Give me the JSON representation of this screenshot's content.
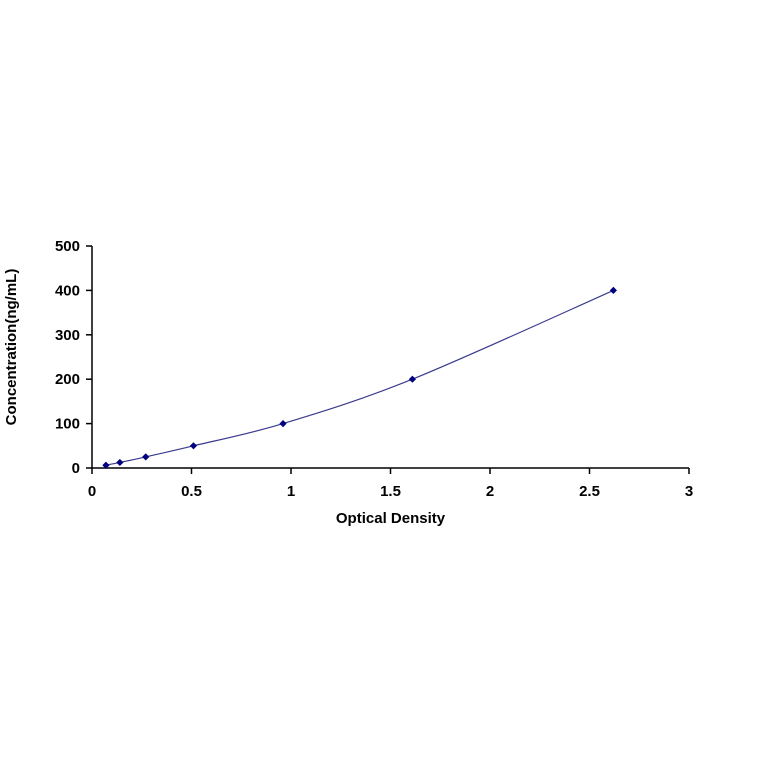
{
  "chart_data": {
    "type": "scatter",
    "xlabel": "Optical Density",
    "ylabel": "Concentration(ng/mL)",
    "xlim": [
      0,
      3
    ],
    "ylim": [
      0,
      500
    ],
    "x_ticks": [
      0,
      0.5,
      1,
      1.5,
      2,
      2.5,
      3
    ],
    "y_ticks": [
      0,
      100,
      200,
      300,
      400,
      500
    ],
    "x_tick_labels": [
      "0",
      "0.5",
      "1",
      "1.5",
      "2",
      "2.5",
      "3"
    ],
    "y_tick_labels": [
      "0",
      "100",
      "200",
      "300",
      "400",
      "500"
    ],
    "grid": false,
    "legend": false,
    "marker_color": "#00007f",
    "curve_color": "#3b3b8f",
    "series": [
      {
        "x": [
          0.07,
          0.14,
          0.27,
          0.51,
          0.96,
          1.61,
          2.62
        ],
        "y": [
          6.25,
          12.5,
          25,
          50,
          100,
          200,
          400
        ]
      }
    ]
  }
}
